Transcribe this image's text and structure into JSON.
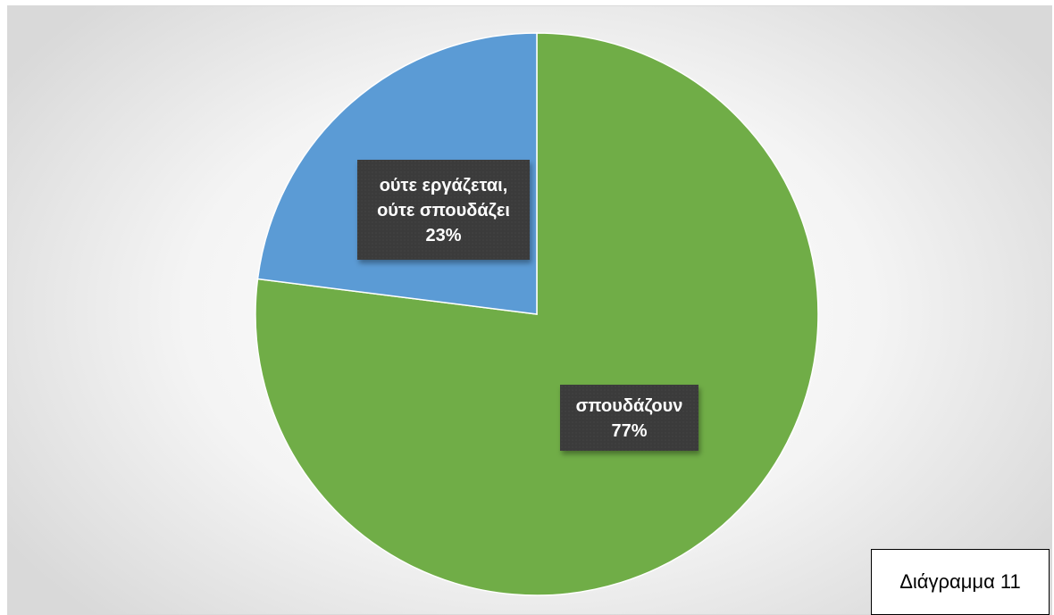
{
  "caption": "Διάγραμμα 11",
  "chart_data": {
    "type": "pie",
    "slices": [
      {
        "label": [
          "σπουδάζουν"
        ],
        "value": 77,
        "display": "77%",
        "color": "#70ad47"
      },
      {
        "label": [
          "ούτε εργάζεται,",
          "ούτε σπουδάζει"
        ],
        "value": 23,
        "display": "23%",
        "color": "#5b9bd5"
      }
    ],
    "start": "12 o'clock",
    "direction": "clockwise",
    "legend": "none"
  }
}
